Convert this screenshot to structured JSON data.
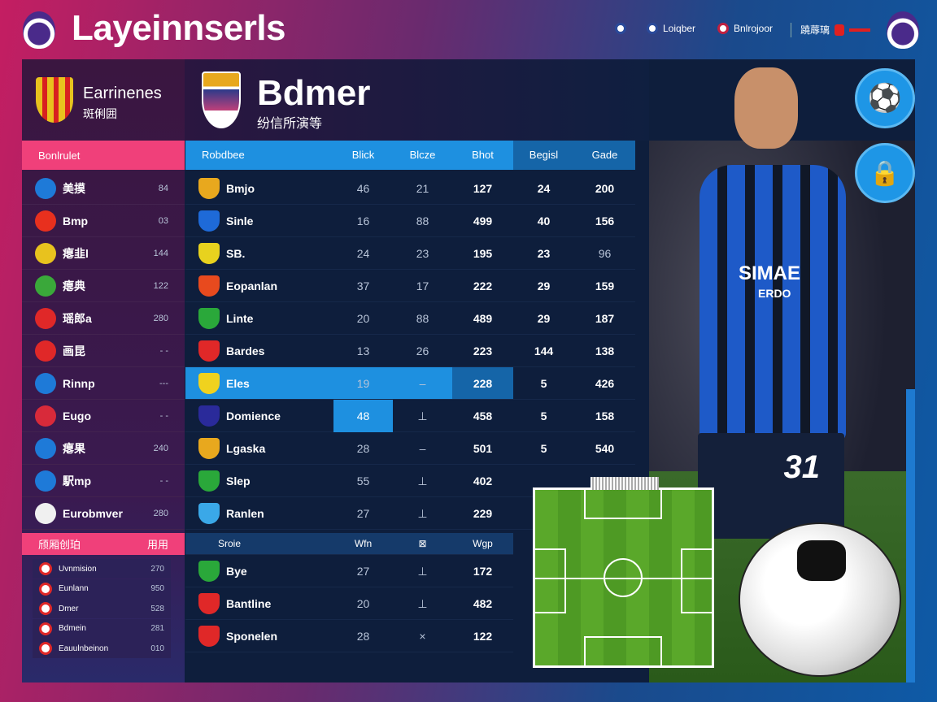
{
  "app": {
    "title": "Layeinnserls"
  },
  "nav": {
    "items": [
      "Loiqber",
      "Bnlrojoor",
      "蹺蓐璃"
    ]
  },
  "banner": {
    "left_title": "Earrinenes",
    "left_sub": "斑俐囲",
    "title": "Bdmer",
    "subtitle": "纷信所演等"
  },
  "sidebar": {
    "header": "Bonlrulet",
    "items": [
      {
        "label": "美摸",
        "value": "84",
        "color": "#1e7ad8"
      },
      {
        "label": "Bmp",
        "value": "03",
        "color": "#e8301e"
      },
      {
        "label": "瘪韭l",
        "value": "144",
        "color": "#e8c21e"
      },
      {
        "label": "瘪典",
        "value": "122",
        "color": "#3aa83a"
      },
      {
        "label": "瑶郎a",
        "value": "280",
        "color": "#e02828"
      },
      {
        "label": "画昆",
        "value": "- -",
        "color": "#e02828"
      },
      {
        "label": "Rinnp",
        "value": "---",
        "color": "#1e7ad8"
      },
      {
        "label": "Eugo",
        "value": "- -",
        "color": "#d82a3a"
      },
      {
        "label": "瘪果",
        "value": "240",
        "color": "#1e7ad8"
      },
      {
        "label": "駅mp",
        "value": "- -",
        "color": "#1e7ad8"
      },
      {
        "label": "Eurobmver",
        "value": "280",
        "color": "#f0f0f0"
      }
    ],
    "footer_header": "颀厢创珀",
    "footer_header_right": "用用",
    "footer_items": [
      {
        "label": "Uvnmision",
        "value": "270"
      },
      {
        "label": "Eunlann",
        "value": "950"
      },
      {
        "label": "Dmer",
        "value": "528"
      },
      {
        "label": "Bdmein",
        "value": "281"
      },
      {
        "label": "Eauulnbeinon",
        "value": "010"
      }
    ]
  },
  "table": {
    "columns": [
      "Robdbee",
      "Blick",
      "Blcze",
      "Bhot",
      "Begisl",
      "Gade"
    ],
    "rows": [
      {
        "name": "Bmjo",
        "c": [
          "46",
          "21",
          "127",
          "24",
          "200"
        ],
        "color": "#e8a81e"
      },
      {
        "name": "Sinle",
        "c": [
          "16",
          "88",
          "499",
          "40",
          "156"
        ],
        "color": "#1e6ad8"
      },
      {
        "name": "SB.",
        "c": [
          "24",
          "23",
          "195",
          "23",
          "96"
        ],
        "color": "#e8d21e"
      },
      {
        "name": "Eopanlan",
        "c": [
          "37",
          "17",
          "222",
          "29",
          "159"
        ],
        "color": "#e84a1e"
      },
      {
        "name": "Linte",
        "c": [
          "20",
          "88",
          "489",
          "29",
          "187"
        ],
        "color": "#2aa83a"
      },
      {
        "name": "Bardes",
        "c": [
          "13",
          "26",
          "223",
          "144",
          "138"
        ],
        "color": "#e02828"
      },
      {
        "name": "Eles",
        "c": [
          "19",
          "–",
          "228",
          "5",
          "426"
        ],
        "color": "#f0d21e",
        "selected": true
      },
      {
        "name": "Domience",
        "c": [
          "48",
          "⊥",
          "458",
          "5",
          "158"
        ],
        "color": "#2a2a9a"
      },
      {
        "name": "Lgaska",
        "c": [
          "28",
          "–",
          "501",
          "5",
          "540"
        ],
        "color": "#e8a81e"
      },
      {
        "name": "Slep",
        "c": [
          "55",
          "⊥",
          "402",
          "",
          ""
        ],
        "color": "#2aa83a"
      },
      {
        "name": "Ranlen",
        "c": [
          "27",
          "⊥",
          "229",
          "",
          ""
        ],
        "color": "#3aa8e8"
      }
    ],
    "subheader": {
      "name": "Sroie",
      "c": [
        "Wfn",
        "⊠",
        "Wgp"
      ]
    },
    "rows2": [
      {
        "name": "Bye",
        "c": [
          "27",
          "⊥",
          "172"
        ],
        "color": "#2aa83a"
      },
      {
        "name": "Bantline",
        "c": [
          "20",
          "⊥",
          "482"
        ],
        "color": "#e02828"
      },
      {
        "name": "Sponelen",
        "c": [
          "28",
          "×",
          "122"
        ],
        "color": "#e02828"
      }
    ]
  },
  "player": {
    "shirt_text": "SIMAE",
    "shirt_sub": "ERDO",
    "number": "31"
  },
  "colors": {
    "accent_pink": "#f0407a",
    "accent_blue": "#1e90e0",
    "panel": "#0e1e3c"
  },
  "icons": {
    "right_top": "soccer-ball-icon",
    "right_second": "lock-icon"
  }
}
